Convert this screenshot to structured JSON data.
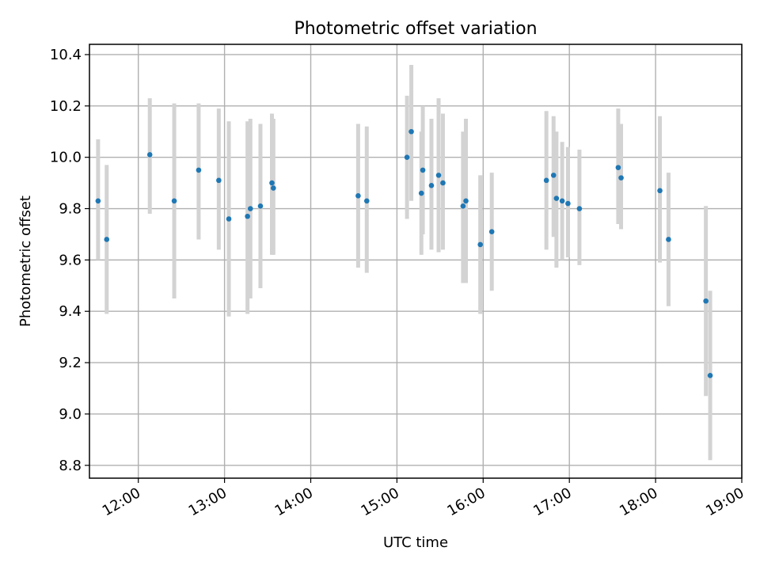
{
  "chart_data": {
    "type": "scatter",
    "title": "Photometric offset variation",
    "xlabel": "UTC time",
    "ylabel": "Photometric offset",
    "x_ticks": [
      "12:00",
      "13:00",
      "14:00",
      "15:00",
      "16:00",
      "17:00",
      "18:00",
      "19:00"
    ],
    "y_ticks": [
      "8.8",
      "9.0",
      "9.2",
      "9.4",
      "9.6",
      "9.8",
      "10.0",
      "10.2",
      "10.4"
    ],
    "xlim": [
      "11:26",
      "19:00"
    ],
    "ylim": [
      8.75,
      10.44
    ],
    "grid": true,
    "marker_color": "#1f77b4",
    "errorbar_color": "#d3d3d3",
    "points": [
      {
        "t": "11:32",
        "y": 9.83,
        "lo": 9.6,
        "hi": 10.07
      },
      {
        "t": "11:38",
        "y": 9.68,
        "lo": 9.39,
        "hi": 9.97
      },
      {
        "t": "12:08",
        "y": 10.01,
        "lo": 9.78,
        "hi": 10.23
      },
      {
        "t": "12:25",
        "y": 9.83,
        "lo": 9.45,
        "hi": 10.21
      },
      {
        "t": "12:42",
        "y": 9.95,
        "lo": 9.68,
        "hi": 10.21
      },
      {
        "t": "12:56",
        "y": 9.91,
        "lo": 9.64,
        "hi": 10.19
      },
      {
        "t": "13:03",
        "y": 9.76,
        "lo": 9.38,
        "hi": 10.14
      },
      {
        "t": "13:16",
        "y": 9.77,
        "lo": 9.39,
        "hi": 10.14
      },
      {
        "t": "13:18",
        "y": 9.8,
        "lo": 9.45,
        "hi": 10.15
      },
      {
        "t": "13:25",
        "y": 9.81,
        "lo": 9.49,
        "hi": 10.13
      },
      {
        "t": "13:33",
        "y": 9.9,
        "lo": 9.62,
        "hi": 10.17
      },
      {
        "t": "13:34",
        "y": 9.88,
        "lo": 9.62,
        "hi": 10.15
      },
      {
        "t": "14:33",
        "y": 9.85,
        "lo": 9.57,
        "hi": 10.13
      },
      {
        "t": "14:39",
        "y": 9.83,
        "lo": 9.55,
        "hi": 10.12
      },
      {
        "t": "15:07",
        "y": 10.0,
        "lo": 9.76,
        "hi": 10.24
      },
      {
        "t": "15:10",
        "y": 10.1,
        "lo": 9.83,
        "hi": 10.36
      },
      {
        "t": "15:17",
        "y": 9.86,
        "lo": 9.62,
        "hi": 10.1
      },
      {
        "t": "15:18",
        "y": 9.95,
        "lo": 9.7,
        "hi": 10.2
      },
      {
        "t": "15:24",
        "y": 9.89,
        "lo": 9.64,
        "hi": 10.15
      },
      {
        "t": "15:29",
        "y": 9.93,
        "lo": 9.63,
        "hi": 10.23
      },
      {
        "t": "15:32",
        "y": 9.9,
        "lo": 9.64,
        "hi": 10.17
      },
      {
        "t": "15:46",
        "y": 9.81,
        "lo": 9.51,
        "hi": 10.1
      },
      {
        "t": "15:48",
        "y": 9.83,
        "lo": 9.51,
        "hi": 10.15
      },
      {
        "t": "15:58",
        "y": 9.66,
        "lo": 9.39,
        "hi": 9.93
      },
      {
        "t": "16:06",
        "y": 9.71,
        "lo": 9.48,
        "hi": 9.94
      },
      {
        "t": "16:44",
        "y": 9.91,
        "lo": 9.64,
        "hi": 10.18
      },
      {
        "t": "16:49",
        "y": 9.93,
        "lo": 9.69,
        "hi": 10.16
      },
      {
        "t": "16:51",
        "y": 9.84,
        "lo": 9.57,
        "hi": 10.1
      },
      {
        "t": "16:55",
        "y": 9.83,
        "lo": 9.6,
        "hi": 10.06
      },
      {
        "t": "16:59",
        "y": 9.82,
        "lo": 9.61,
        "hi": 10.04
      },
      {
        "t": "17:07",
        "y": 9.8,
        "lo": 9.58,
        "hi": 10.03
      },
      {
        "t": "17:34",
        "y": 9.96,
        "lo": 9.74,
        "hi": 10.19
      },
      {
        "t": "17:36",
        "y": 9.92,
        "lo": 9.72,
        "hi": 10.13
      },
      {
        "t": "18:03",
        "y": 9.87,
        "lo": 9.59,
        "hi": 10.16
      },
      {
        "t": "18:09",
        "y": 9.68,
        "lo": 9.42,
        "hi": 9.94
      },
      {
        "t": "18:35",
        "y": 9.44,
        "lo": 9.07,
        "hi": 9.81
      },
      {
        "t": "18:38",
        "y": 9.15,
        "lo": 8.82,
        "hi": 9.48
      }
    ]
  }
}
